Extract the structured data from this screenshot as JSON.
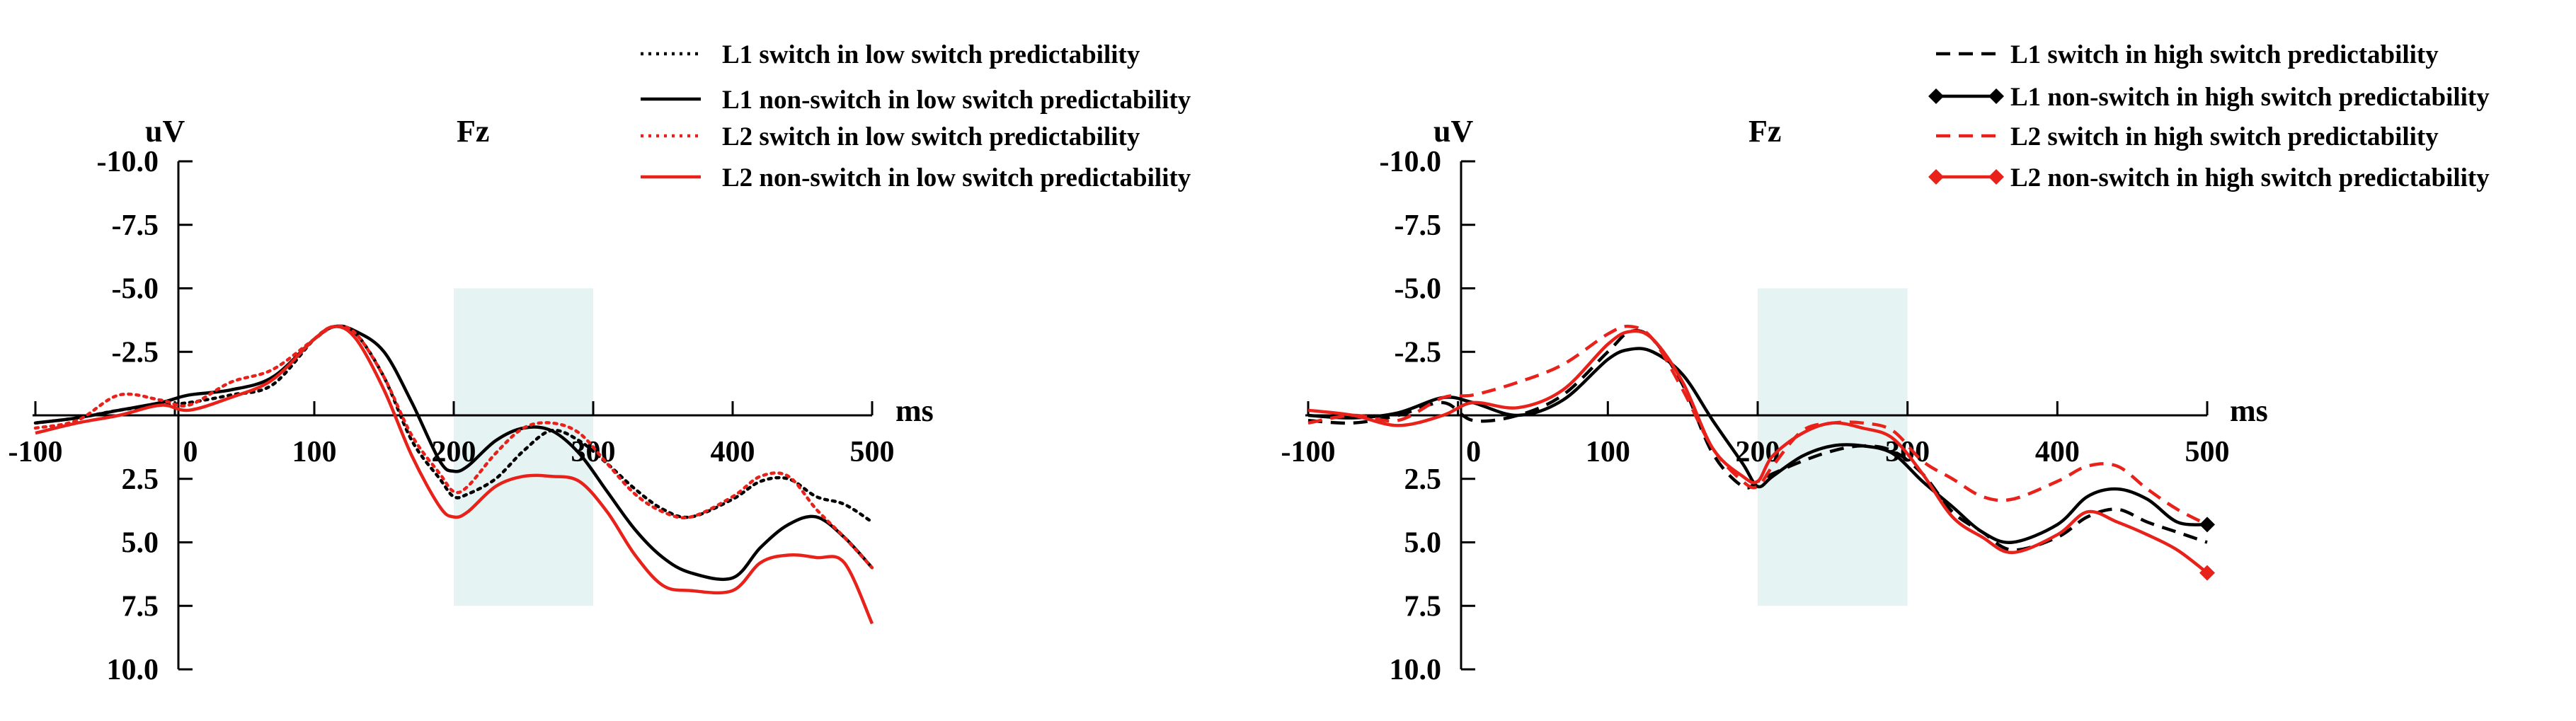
{
  "chart_data": [
    {
      "type": "line",
      "title": "Fz",
      "ylabel": "uV",
      "xlabel": "ms",
      "xlim": [
        -100,
        500
      ],
      "ylim": [
        10,
        -10
      ],
      "y_inverted": true,
      "x_ticks": [
        "-100",
        "0",
        "100",
        "200",
        "300",
        "400",
        "500"
      ],
      "y_ticks": [
        "-10.0",
        "-7.5",
        "-5.0",
        "-2.5",
        "2.5",
        "5.0",
        "7.5",
        "10.0"
      ],
      "highlight_window": [
        200,
        300
      ],
      "legend_position": "top-right",
      "series": [
        {
          "name": "L1 switch in  low switch predictability",
          "color": "#000000",
          "dash": "dotted",
          "marker": "none",
          "x": [
            -100,
            -70,
            -40,
            -10,
            10,
            40,
            70,
            100,
            115,
            130,
            150,
            170,
            190,
            200,
            210,
            230,
            250,
            270,
            290,
            310,
            330,
            350,
            370,
            400,
            420,
            440,
            460,
            480,
            500
          ],
          "y": [
            0.3,
            0.1,
            -0.2,
            -0.4,
            -0.5,
            -0.8,
            -1.2,
            -3.0,
            -3.5,
            -3.2,
            -1.5,
            1.0,
            2.5,
            3.2,
            3.1,
            2.5,
            1.4,
            0.6,
            1.0,
            1.9,
            2.9,
            3.7,
            4.0,
            3.3,
            2.6,
            2.5,
            3.2,
            3.5,
            4.2
          ]
        },
        {
          "name": "L1 non-switch in low switch predictability",
          "color": "#000000",
          "dash": "solid",
          "marker": "none",
          "x": [
            -100,
            -70,
            -40,
            -10,
            10,
            40,
            70,
            100,
            115,
            130,
            150,
            170,
            190,
            200,
            210,
            230,
            250,
            270,
            290,
            310,
            330,
            350,
            370,
            400,
            420,
            440,
            460,
            480,
            500
          ],
          "y": [
            0.3,
            0.1,
            -0.2,
            -0.5,
            -0.8,
            -1.0,
            -1.5,
            -3.0,
            -3.5,
            -3.3,
            -2.5,
            -0.5,
            1.8,
            2.2,
            2.0,
            1.0,
            0.5,
            0.6,
            1.5,
            3.0,
            4.5,
            5.6,
            6.2,
            6.4,
            5.2,
            4.3,
            4.0,
            4.8,
            6.0
          ]
        },
        {
          "name": "L2 switch in low switch predictability",
          "color": "#e8221b",
          "dash": "dotted",
          "marker": "none",
          "x": [
            -100,
            -70,
            -40,
            -10,
            10,
            40,
            70,
            100,
            115,
            130,
            150,
            170,
            190,
            200,
            210,
            230,
            250,
            270,
            290,
            310,
            330,
            350,
            370,
            400,
            420,
            440,
            460,
            480,
            500
          ],
          "y": [
            0.5,
            0.2,
            -0.8,
            -0.6,
            -0.4,
            -1.3,
            -1.8,
            -3.0,
            -3.5,
            -3.2,
            -1.5,
            0.8,
            2.3,
            3.0,
            2.8,
            1.5,
            0.5,
            0.3,
            0.7,
            1.9,
            3.1,
            3.8,
            4.0,
            3.2,
            2.4,
            2.4,
            3.7,
            4.8,
            6.0
          ]
        },
        {
          "name": "L2 non-switch in low switch predictability",
          "color": "#e8221b",
          "dash": "solid",
          "marker": "none",
          "x": [
            -100,
            -70,
            -40,
            -10,
            10,
            40,
            70,
            100,
            115,
            130,
            150,
            170,
            190,
            200,
            210,
            230,
            250,
            270,
            290,
            310,
            330,
            350,
            370,
            400,
            420,
            440,
            460,
            480,
            500
          ],
          "y": [
            0.7,
            0.3,
            0.0,
            -0.4,
            -0.2,
            -0.7,
            -1.4,
            -3.0,
            -3.5,
            -3.0,
            -1.0,
            1.6,
            3.6,
            4.0,
            3.8,
            2.8,
            2.4,
            2.4,
            2.6,
            3.8,
            5.5,
            6.7,
            6.9,
            6.9,
            5.8,
            5.5,
            5.6,
            5.8,
            8.2
          ]
        }
      ]
    },
    {
      "type": "line",
      "title": "Fz",
      "ylabel": "uV",
      "xlabel": "ms",
      "xlim": [
        -100,
        500
      ],
      "ylim": [
        10,
        -10
      ],
      "y_inverted": true,
      "x_ticks": [
        "-100",
        "0",
        "100",
        "200",
        "300",
        "400",
        "500"
      ],
      "y_ticks": [
        "-10.0",
        "-7.5",
        "-5.0",
        "-2.5",
        "2.5",
        "5.0",
        "7.5",
        "10.0"
      ],
      "highlight_window": [
        200,
        300
      ],
      "legend_position": "top-right",
      "series": [
        {
          "name": "L1 switch in high switch predictability",
          "color": "#000000",
          "dash": "dashed",
          "marker": "none",
          "x": [
            -100,
            -70,
            -40,
            -10,
            10,
            40,
            70,
            100,
            115,
            130,
            150,
            170,
            190,
            200,
            210,
            230,
            250,
            270,
            290,
            310,
            330,
            350,
            370,
            400,
            420,
            440,
            460,
            480,
            500
          ],
          "y": [
            0.2,
            0.3,
            0.0,
            -0.5,
            0.2,
            0.0,
            -0.8,
            -2.5,
            -3.3,
            -3.0,
            -1.2,
            1.5,
            2.8,
            2.6,
            2.3,
            1.8,
            1.4,
            1.2,
            1.4,
            2.3,
            3.8,
            4.6,
            5.3,
            4.8,
            4.0,
            3.7,
            4.2,
            4.6,
            5.0
          ]
        },
        {
          "name": "L1 non-switch in high switch predictability",
          "color": "#000000",
          "dash": "solid",
          "marker": "diamond",
          "x": [
            -100,
            -70,
            -40,
            -10,
            10,
            40,
            70,
            100,
            115,
            130,
            150,
            170,
            190,
            200,
            210,
            230,
            250,
            270,
            290,
            310,
            330,
            350,
            370,
            400,
            420,
            440,
            460,
            480,
            500
          ],
          "y": [
            0.0,
            0.1,
            -0.1,
            -0.7,
            -0.5,
            0.0,
            -0.6,
            -2.2,
            -2.6,
            -2.5,
            -1.6,
            0.2,
            1.9,
            2.8,
            2.4,
            1.6,
            1.2,
            1.2,
            1.5,
            2.6,
            3.6,
            4.6,
            5.0,
            4.3,
            3.2,
            2.9,
            3.3,
            4.2,
            4.3
          ]
        },
        {
          "name": "L2 switch in high switch predictability",
          "color": "#e8221b",
          "dash": "dashed",
          "marker": "none",
          "x": [
            -100,
            -70,
            -40,
            -10,
            10,
            40,
            70,
            100,
            115,
            130,
            150,
            170,
            190,
            200,
            210,
            230,
            250,
            270,
            290,
            310,
            330,
            350,
            370,
            400,
            420,
            440,
            460,
            480,
            500
          ],
          "y": [
            0.3,
            0.0,
            0.2,
            -0.7,
            -0.8,
            -1.3,
            -2.0,
            -3.2,
            -3.5,
            -3.0,
            -1.0,
            1.3,
            2.6,
            2.8,
            2.0,
            0.6,
            0.3,
            0.3,
            0.6,
            1.8,
            2.5,
            3.2,
            3.3,
            2.6,
            2.0,
            2.0,
            2.9,
            3.7,
            4.3
          ]
        },
        {
          "name": "L2 non-switch in high switch predictability",
          "color": "#e8221b",
          "dash": "solid",
          "marker": "diamond",
          "x": [
            -100,
            -70,
            -40,
            -10,
            10,
            40,
            70,
            100,
            115,
            130,
            150,
            170,
            190,
            200,
            210,
            230,
            250,
            270,
            290,
            310,
            330,
            350,
            370,
            400,
            420,
            440,
            460,
            480,
            500
          ],
          "y": [
            -0.2,
            0.0,
            0.4,
            0.0,
            -0.5,
            -0.3,
            -1.0,
            -2.8,
            -3.3,
            -3.0,
            -1.3,
            1.3,
            2.4,
            2.6,
            1.6,
            0.7,
            0.3,
            0.5,
            0.9,
            2.3,
            4.0,
            4.8,
            5.4,
            4.7,
            3.8,
            4.2,
            4.7,
            5.3,
            6.2
          ]
        }
      ]
    }
  ]
}
